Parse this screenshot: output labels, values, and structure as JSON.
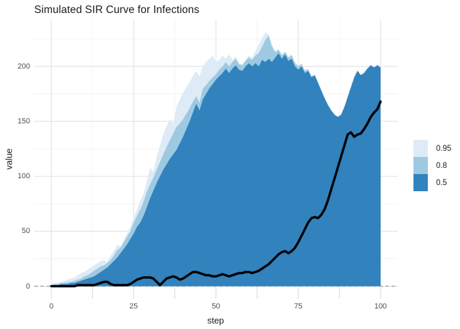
{
  "chart_data": {
    "type": "area",
    "title": "Simulated SIR Curve for Infections",
    "xlabel": "step",
    "ylabel": "value",
    "x_ticks": [
      0,
      25,
      50,
      75,
      100
    ],
    "x_minor_ticks": [
      12.5,
      37.5,
      62.5,
      87.5
    ],
    "y_ticks": [
      0,
      50,
      100,
      150,
      200
    ],
    "y_minor_ticks": [
      25,
      75,
      125,
      175,
      225
    ],
    "xlim": [
      -5.2,
      105.2
    ],
    "ylim": [
      -1.5,
      243
    ],
    "grid": true,
    "legend_position": "right",
    "colors": {
      "band_095": "#DEEBF7",
      "band_080": "#9ECAE1",
      "band_050": "#3182BD",
      "observed_line": "#000000",
      "grid_major": "#E4E4E4",
      "grid_minor": "#F2F2F2",
      "axis_tick": "#DADADA",
      "axis_text": "#4D4D4D",
      "reference_line": "#A9A9A9"
    },
    "reference_line": {
      "y": 0,
      "style": "dashed"
    },
    "x": [
      0,
      1,
      2,
      3,
      4,
      5,
      6,
      7,
      8,
      9,
      10,
      11,
      12,
      13,
      14,
      15,
      16,
      17,
      18,
      19,
      20,
      21,
      22,
      23,
      24,
      25,
      26,
      27,
      28,
      29,
      30,
      31,
      32,
      33,
      34,
      35,
      36,
      37,
      38,
      39,
      40,
      41,
      42,
      43,
      44,
      45,
      46,
      47,
      48,
      49,
      50,
      51,
      52,
      53,
      54,
      55,
      56,
      57,
      58,
      59,
      60,
      61,
      62,
      63,
      64,
      65,
      66,
      67,
      68,
      69,
      70,
      71,
      72,
      73,
      74,
      75,
      76,
      77,
      78,
      79,
      80,
      81,
      82,
      83,
      84,
      85,
      86,
      87,
      88,
      89,
      90,
      91,
      92,
      93,
      94,
      95,
      96,
      97,
      98,
      99,
      100
    ],
    "series": [
      {
        "name": "band-0.95-upper",
        "legend_label": "0.95",
        "type": "area",
        "fill": "#DEEBF7",
        "baseline": 0,
        "values": [
          2,
          3,
          3,
          4,
          5,
          6,
          7,
          8,
          10,
          12,
          13,
          15,
          17,
          19,
          21,
          23,
          24,
          22,
          28,
          32,
          38,
          36,
          42,
          48,
          54,
          62,
          70,
          78,
          84,
          96,
          108,
          104,
          118,
          128,
          138,
          146,
          152,
          148,
          163,
          170,
          176,
          181,
          186,
          191,
          196,
          191,
          200,
          204,
          207,
          210,
          204,
          206,
          210,
          207,
          211,
          206,
          209,
          203,
          202,
          206,
          210,
          208,
          214,
          220,
          226,
          231,
          229,
          220,
          214,
          216,
          211,
          214,
          209,
          211,
          204,
          201,
          203,
          197,
          198,
          192,
          193,
          186,
          179,
          172,
          166,
          161,
          157,
          155,
          157,
          164,
          173,
          182,
          191,
          197,
          193,
          195,
          199,
          202,
          200,
          202,
          200
        ]
      },
      {
        "name": "band-0.8-upper",
        "legend_label": "0.8",
        "type": "area",
        "fill": "#9ECAE1",
        "baseline": 0,
        "values": [
          1,
          2,
          2,
          3,
          3,
          4,
          4,
          5,
          6,
          7,
          9,
          10,
          12,
          14,
          16,
          18,
          19,
          21,
          24,
          28,
          33,
          35,
          40,
          45,
          50,
          58,
          64,
          70,
          77,
          86,
          93,
          99,
          106,
          113,
          120,
          127,
          133,
          139,
          145,
          148,
          152,
          157,
          162,
          168,
          173,
          167,
          180,
          183,
          187,
          190,
          193,
          197,
          200,
          204,
          200,
          204,
          207,
          202,
          201,
          205,
          208,
          206,
          210,
          212,
          218,
          224,
          228,
          218,
          213,
          215,
          210,
          213,
          208,
          210,
          203,
          200,
          202,
          196,
          197,
          191,
          192,
          185,
          178,
          171,
          165,
          160,
          156,
          154,
          156,
          163,
          172,
          181,
          190,
          196,
          192,
          194,
          198,
          201,
          199,
          201,
          199
        ]
      },
      {
        "name": "band-0.5-upper",
        "legend_label": "0.5",
        "type": "area",
        "fill": "#3182BD",
        "baseline": 0,
        "values": [
          1,
          1,
          1,
          2,
          2,
          2,
          3,
          3,
          4,
          5,
          6,
          7,
          8,
          9,
          11,
          13,
          15,
          17,
          20,
          23,
          26,
          30,
          34,
          38,
          43,
          48,
          54,
          58,
          64,
          72,
          80,
          87,
          94,
          100,
          106,
          111,
          116,
          120,
          124,
          130,
          136,
          143,
          150,
          158,
          166,
          160,
          170,
          175,
          180,
          184,
          188,
          191,
          194,
          198,
          194,
          198,
          201,
          197,
          196,
          200,
          203,
          200,
          203,
          200,
          206,
          204,
          207,
          204,
          208,
          212,
          207,
          211,
          205,
          207,
          200,
          197,
          200,
          194,
          196,
          190,
          192,
          185,
          178,
          171,
          165,
          160,
          156,
          154,
          156,
          163,
          172,
          181,
          190,
          196,
          192,
          194,
          198,
          201,
          199,
          201,
          199
        ]
      },
      {
        "name": "observed",
        "type": "line",
        "color": "#000000",
        "width": 3.4,
        "values": [
          0,
          0,
          0,
          0,
          0,
          0,
          0,
          0,
          1,
          1,
          1,
          1,
          1,
          1,
          2,
          3,
          4,
          4,
          2,
          1,
          1,
          1,
          1,
          1,
          2,
          4,
          6,
          7,
          8,
          8,
          8,
          7,
          4,
          1,
          4,
          7,
          8,
          9,
          8,
          6,
          7,
          9,
          11,
          13,
          13,
          12,
          11,
          10,
          10,
          9,
          9,
          10,
          11,
          10,
          9,
          10,
          11,
          12,
          12,
          13,
          13,
          12,
          13,
          14,
          16,
          18,
          20,
          23,
          26,
          29,
          31,
          32,
          30,
          32,
          35,
          40,
          46,
          52,
          58,
          62,
          63,
          62,
          65,
          70,
          78,
          88,
          98,
          108,
          118,
          128,
          138,
          140,
          136,
          138,
          139,
          143,
          148,
          154,
          158,
          161,
          168
        ]
      }
    ],
    "legend": {
      "entries": [
        {
          "label": "0.95",
          "color": "#DEEBF7"
        },
        {
          "label": "0.8",
          "color": "#9ECAE1"
        },
        {
          "label": "0.5",
          "color": "#3182BD"
        }
      ]
    }
  }
}
